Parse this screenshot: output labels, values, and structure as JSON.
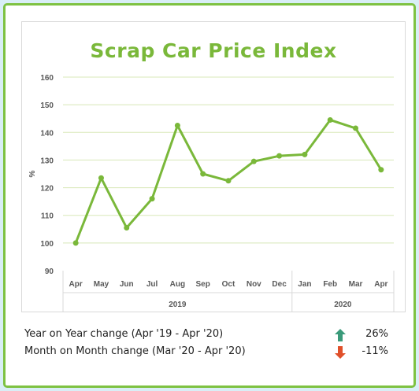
{
  "chart_data": {
    "type": "line",
    "title": "Scrap Car Price Index",
    "ylabel": "%",
    "xlabel": "",
    "ylim": [
      90,
      160
    ],
    "yticks": [
      90,
      100,
      110,
      120,
      130,
      140,
      150,
      160
    ],
    "grid": true,
    "categories": [
      "Apr",
      "May",
      "Jun",
      "Jul",
      "Aug",
      "Sep",
      "Oct",
      "Nov",
      "Dec",
      "Jan",
      "Feb",
      "Mar",
      "Apr"
    ],
    "groups": [
      {
        "label": "2019",
        "span": 9
      },
      {
        "label": "2020",
        "span": 4
      }
    ],
    "series": [
      {
        "values": [
          100,
          123.5,
          105.5,
          116,
          142.5,
          125,
          122.5,
          129.5,
          131.5,
          132,
          144.5,
          141.5,
          126.5
        ]
      }
    ],
    "colors": {
      "line": "#7ab83a",
      "grid": "#d8e8b8",
      "title": "#7ab83a"
    }
  },
  "stats": {
    "yoy_label": "Year on Year change (Apr '19 - Apr '20)",
    "yoy_value": "26%",
    "yoy_icon": "arrow-up-icon",
    "mom_label": "Month on Month change (Mar '20 - Apr '20)",
    "mom_value": "-11%",
    "mom_icon": "arrow-down-icon",
    "up_color": "#3a9a7a",
    "down_color": "#e0502a"
  }
}
